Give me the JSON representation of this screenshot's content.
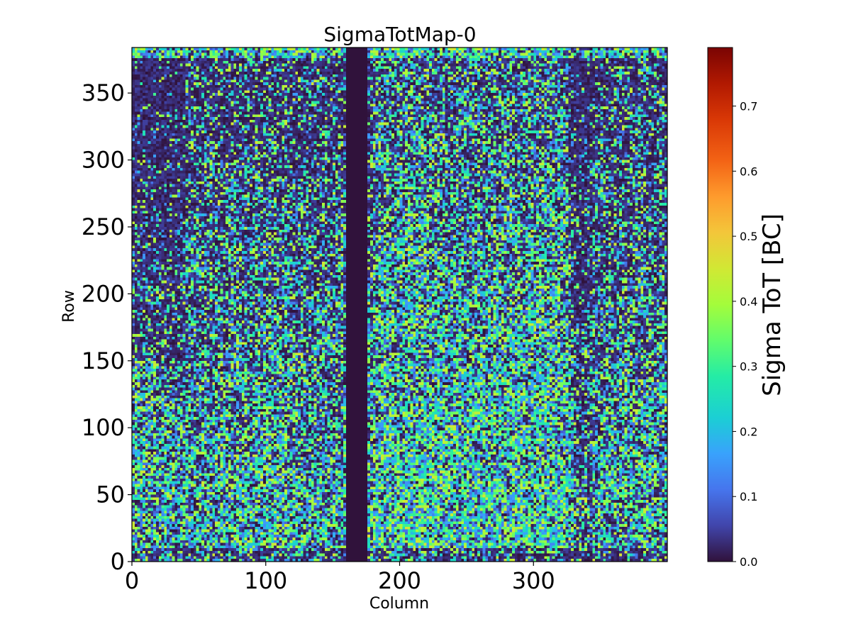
{
  "chart_data": {
    "type": "heatmap",
    "title": "SigmaTotMap-0",
    "xlabel": "Column",
    "ylabel": "Row",
    "xlim": [
      0,
      400
    ],
    "ylim": [
      0,
      384
    ],
    "x_ticks": [
      0,
      100,
      200,
      300
    ],
    "y_ticks": [
      0,
      50,
      100,
      150,
      200,
      250,
      300,
      350
    ],
    "x_tick_labels": [
      "0",
      "100",
      "200",
      "300"
    ],
    "y_tick_labels": [
      "0",
      "50",
      "100",
      "150",
      "200",
      "250",
      "300",
      "350"
    ],
    "colormap": "turbo",
    "colorbar": {
      "label": "Sigma ToT [BC]",
      "range": [
        0.0,
        0.79
      ],
      "ticks": [
        0.0,
        0.1,
        0.2,
        0.3,
        0.4,
        0.5,
        0.6,
        0.7
      ],
      "tick_labels": [
        "0.0",
        "0.1",
        "0.2",
        "0.3",
        "0.4",
        "0.5",
        "0.6",
        "0.7"
      ]
    },
    "features": {
      "dead_columns": [
        160,
        176
      ],
      "dead_value": 0.0,
      "typical_value_range": [
        0.0,
        0.45
      ],
      "low_rows_band": [
        376,
        384
      ],
      "bottom_rows_band": [
        0,
        10
      ]
    },
    "grid": false,
    "legend": "none"
  }
}
